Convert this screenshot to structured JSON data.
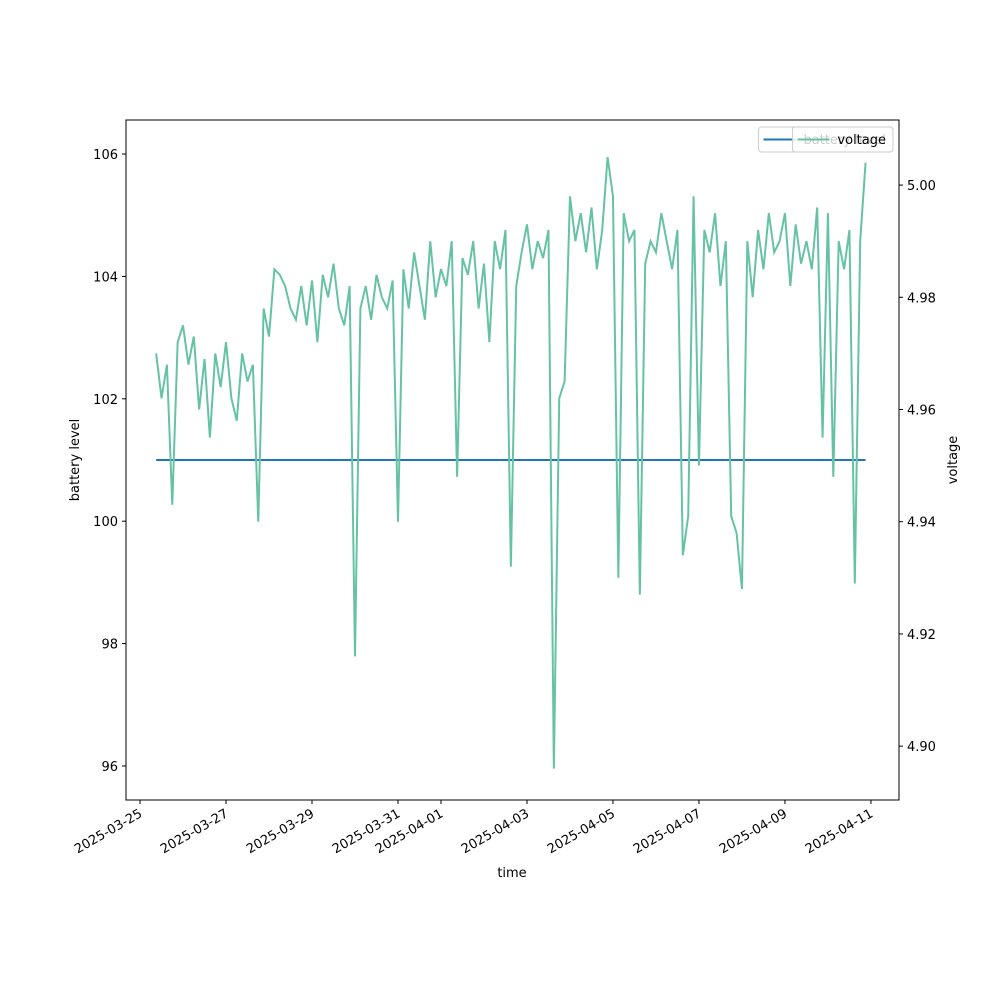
{
  "chart_data": {
    "type": "line",
    "xlabel": "time",
    "ylabel": "battery level",
    "y2label": "voltage",
    "xlim": [
      "2025-03-24 16:10",
      "2025-04-11 15:40"
    ],
    "xticks": [
      "2025-03-25",
      "2025-03-27",
      "2025-03-29",
      "2025-03-31",
      "2025-04-01",
      "2025-04-03",
      "2025-04-05",
      "2025-04-07",
      "2025-04-09",
      "2025-04-11"
    ],
    "ylim": [
      95.444,
      106.556
    ],
    "yticks": [
      96,
      98,
      100,
      102,
      104,
      106
    ],
    "y2lim": [
      4.8904,
      5.0116
    ],
    "y2ticks": [
      {
        "value": 4.9,
        "label": "4.90"
      },
      4.92,
      4.94,
      4.96,
      4.98,
      {
        "value": 5.0,
        "label": "5.00"
      }
    ],
    "legend": "upper right",
    "series": [
      {
        "name": "battery level",
        "color": "#1f77b4",
        "x": [
          "2025-03-25 09:00",
          "2025-04-10 21:00"
        ],
        "values": [
          101,
          101
        ]
      },
      {
        "name": "voltage",
        "color": "#66c2a5",
        "axis": "y2",
        "x": [
          "2025-03-25 09:00",
          "2025-03-25 12:00",
          "2025-03-25 15:00",
          "2025-03-25 18:00",
          "2025-03-25 21:00",
          "2025-03-26 00:00",
          "2025-03-26 03:00",
          "2025-03-26 06:00",
          "2025-03-26 09:00",
          "2025-03-26 12:00",
          "2025-03-26 15:00",
          "2025-03-26 18:00",
          "2025-03-26 21:00",
          "2025-03-27 00:00",
          "2025-03-27 03:00",
          "2025-03-27 06:00",
          "2025-03-27 09:00",
          "2025-03-27 12:00",
          "2025-03-27 15:00",
          "2025-03-27 18:00",
          "2025-03-27 21:00",
          "2025-03-28 00:00",
          "2025-03-28 03:00",
          "2025-03-28 06:00",
          "2025-03-28 09:00",
          "2025-03-28 12:00",
          "2025-03-28 15:00",
          "2025-03-28 18:00",
          "2025-03-28 21:00",
          "2025-03-29 00:00",
          "2025-03-29 03:00",
          "2025-03-29 06:00",
          "2025-03-29 09:00",
          "2025-03-29 12:00",
          "2025-03-29 15:00",
          "2025-03-29 18:00",
          "2025-03-29 21:00",
          "2025-03-30 00:00",
          "2025-03-30 03:00",
          "2025-03-30 06:00",
          "2025-03-30 09:00",
          "2025-03-30 12:00",
          "2025-03-30 15:00",
          "2025-03-30 18:00",
          "2025-03-30 21:00",
          "2025-03-31 00:00",
          "2025-03-31 03:00",
          "2025-03-31 06:00",
          "2025-03-31 09:00",
          "2025-03-31 12:00",
          "2025-03-31 15:00",
          "2025-03-31 18:00",
          "2025-03-31 21:00",
          "2025-04-01 00:00",
          "2025-04-01 03:00",
          "2025-04-01 06:00",
          "2025-04-01 09:00",
          "2025-04-01 12:00",
          "2025-04-01 15:00",
          "2025-04-01 18:00",
          "2025-04-01 21:00",
          "2025-04-02 00:00",
          "2025-04-02 03:00",
          "2025-04-02 06:00",
          "2025-04-02 09:00",
          "2025-04-02 12:00",
          "2025-04-02 15:00",
          "2025-04-02 18:00",
          "2025-04-02 21:00",
          "2025-04-03 00:00",
          "2025-04-03 03:00",
          "2025-04-03 06:00",
          "2025-04-03 09:00",
          "2025-04-03 12:00",
          "2025-04-03 15:00",
          "2025-04-03 18:00",
          "2025-04-03 21:00",
          "2025-04-04 00:00",
          "2025-04-04 03:00",
          "2025-04-04 06:00",
          "2025-04-04 09:00",
          "2025-04-04 12:00",
          "2025-04-04 15:00",
          "2025-04-04 18:00",
          "2025-04-04 21:00",
          "2025-04-05 00:00",
          "2025-04-05 03:00",
          "2025-04-05 06:00",
          "2025-04-05 09:00",
          "2025-04-05 12:00",
          "2025-04-05 15:00",
          "2025-04-05 18:00",
          "2025-04-05 21:00",
          "2025-04-06 00:00",
          "2025-04-06 03:00",
          "2025-04-06 06:00",
          "2025-04-06 09:00",
          "2025-04-06 12:00",
          "2025-04-06 15:00",
          "2025-04-06 18:00",
          "2025-04-06 21:00",
          "2025-04-07 00:00",
          "2025-04-07 03:00",
          "2025-04-07 06:00",
          "2025-04-07 09:00",
          "2025-04-07 12:00",
          "2025-04-07 15:00",
          "2025-04-07 18:00",
          "2025-04-07 21:00",
          "2025-04-08 00:00",
          "2025-04-08 03:00",
          "2025-04-08 06:00",
          "2025-04-08 09:00",
          "2025-04-08 12:00",
          "2025-04-08 15:00",
          "2025-04-08 18:00",
          "2025-04-08 21:00",
          "2025-04-09 00:00",
          "2025-04-09 03:00",
          "2025-04-09 06:00",
          "2025-04-09 09:00",
          "2025-04-09 12:00",
          "2025-04-09 15:00",
          "2025-04-09 18:00",
          "2025-04-09 21:00",
          "2025-04-10 00:00",
          "2025-04-10 03:00",
          "2025-04-10 06:00",
          "2025-04-10 09:00",
          "2025-04-10 12:00",
          "2025-04-10 15:00",
          "2025-04-10 18:00",
          "2025-04-10 21:00"
        ],
        "values": [
          4.97,
          4.962,
          4.968,
          4.943,
          4.972,
          4.975,
          4.968,
          4.973,
          4.96,
          4.969,
          4.955,
          4.97,
          4.964,
          4.972,
          4.962,
          4.958,
          4.97,
          4.965,
          4.968,
          4.94,
          4.978,
          4.973,
          4.985,
          4.984,
          4.982,
          4.978,
          4.976,
          4.982,
          4.975,
          4.983,
          4.972,
          4.984,
          4.98,
          4.986,
          4.978,
          4.975,
          4.982,
          4.916,
          4.978,
          4.982,
          4.976,
          4.984,
          4.98,
          4.978,
          4.983,
          4.94,
          4.985,
          4.978,
          4.988,
          4.982,
          4.976,
          4.99,
          4.98,
          4.985,
          4.982,
          4.99,
          4.948,
          4.987,
          4.984,
          4.99,
          4.978,
          4.986,
          4.972,
          4.99,
          4.985,
          4.992,
          4.932,
          4.982,
          4.988,
          4.993,
          4.985,
          4.99,
          4.987,
          4.992,
          4.896,
          4.962,
          4.965,
          4.998,
          4.99,
          4.995,
          4.988,
          4.996,
          4.985,
          4.992,
          5.005,
          4.998,
          4.93,
          4.995,
          4.99,
          4.992,
          4.927,
          4.986,
          4.99,
          4.988,
          4.995,
          4.99,
          4.985,
          4.992,
          4.934,
          4.941,
          4.998,
          4.95,
          4.992,
          4.988,
          4.995,
          4.982,
          4.99,
          4.941,
          4.938,
          4.928,
          4.99,
          4.98,
          4.992,
          4.985,
          4.995,
          4.988,
          4.99,
          4.995,
          4.982,
          4.993,
          4.986,
          4.99,
          4.985,
          4.996,
          4.955,
          4.995,
          4.948,
          4.99,
          4.985,
          4.992,
          4.929,
          4.99,
          5.004
        ]
      }
    ]
  }
}
